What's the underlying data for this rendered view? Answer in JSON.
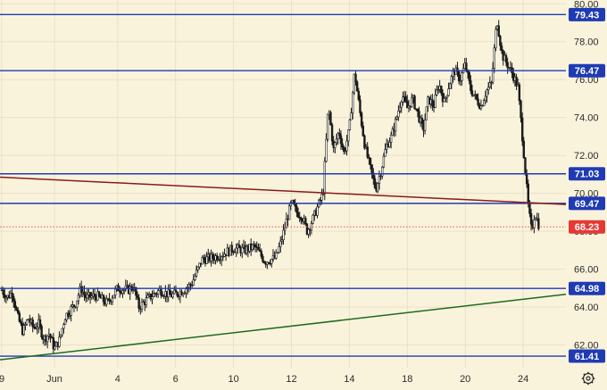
{
  "chart_data": {
    "type": "candlestick",
    "ylim": [
      60.8,
      80.2
    ],
    "y_ticks": [
      62,
      64,
      66,
      68,
      70,
      72,
      74,
      76,
      78,
      80
    ],
    "y_tick_labels": [
      "62.00",
      "64.00",
      "66.00",
      "68.00",
      "70.00",
      "72.00",
      "74.00",
      "76.00",
      "78.00",
      "80.00"
    ],
    "x_range": [
      0,
      50
    ],
    "x_ticks": [
      {
        "x": 0,
        "label": "9"
      },
      {
        "x": 5,
        "label": "Jun"
      },
      {
        "x": 11,
        "label": "4"
      },
      {
        "x": 16.5,
        "label": "6"
      },
      {
        "x": 22,
        "label": "10"
      },
      {
        "x": 27.5,
        "label": "12"
      },
      {
        "x": 33,
        "label": "14"
      },
      {
        "x": 38.5,
        "label": "18"
      },
      {
        "x": 44,
        "label": "20"
      },
      {
        "x": 49.5,
        "label": "24"
      }
    ],
    "close_path": [
      [
        0,
        64.9
      ],
      [
        0.5,
        64.5
      ],
      [
        1,
        64.8
      ],
      [
        1.5,
        63.5
      ],
      [
        2,
        62.7
      ],
      [
        2.5,
        63.4
      ],
      [
        3,
        62.9
      ],
      [
        3.5,
        63.1
      ],
      [
        4,
        62.3
      ],
      [
        4.5,
        62.6
      ],
      [
        5,
        61.8
      ],
      [
        5.5,
        62.3
      ],
      [
        6,
        63.5
      ],
      [
        7,
        64.2
      ],
      [
        7.5,
        65.0
      ],
      [
        8,
        64.5
      ],
      [
        9,
        64.6
      ],
      [
        10,
        64.2
      ],
      [
        11,
        65.0
      ],
      [
        12,
        64.9
      ],
      [
        12.5,
        65.1
      ],
      [
        13,
        64.0
      ],
      [
        14,
        64.5
      ],
      [
        15,
        64.9
      ],
      [
        16,
        64.6
      ],
      [
        17,
        64.8
      ],
      [
        18,
        65.2
      ],
      [
        19,
        66.5
      ],
      [
        20,
        66.6
      ],
      [
        21,
        66.8
      ],
      [
        22,
        67.1
      ],
      [
        23,
        67.0
      ],
      [
        24,
        67.2
      ],
      [
        25,
        66.4
      ],
      [
        26,
        66.6
      ],
      [
        26.5,
        67.4
      ],
      [
        27,
        68.5
      ],
      [
        27.5,
        69.5
      ],
      [
        28,
        69.0
      ],
      [
        28.5,
        68.8
      ],
      [
        29,
        68.0
      ],
      [
        29.5,
        68.6
      ],
      [
        30,
        69.3
      ],
      [
        30.5,
        70.0
      ],
      [
        31,
        74.6
      ],
      [
        31.5,
        72.3
      ],
      [
        32,
        73.3
      ],
      [
        32.5,
        72.1
      ],
      [
        33,
        73.4
      ],
      [
        33.5,
        76.4
      ],
      [
        34,
        74.3
      ],
      [
        34.5,
        72.4
      ],
      [
        35,
        71.3
      ],
      [
        35.5,
        70.2
      ],
      [
        36,
        71.2
      ],
      [
        36.5,
        72.5
      ],
      [
        37,
        73.0
      ],
      [
        37.5,
        74.0
      ],
      [
        38,
        75.2
      ],
      [
        38.5,
        74.5
      ],
      [
        39,
        75.0
      ],
      [
        39.5,
        74.2
      ],
      [
        40,
        73.3
      ],
      [
        40.5,
        75.0
      ],
      [
        41,
        74.6
      ],
      [
        41.5,
        75.8
      ],
      [
        42,
        74.8
      ],
      [
        42.5,
        75.8
      ],
      [
        43,
        76.5
      ],
      [
        43.5,
        76.0
      ],
      [
        44,
        76.8
      ],
      [
        44.5,
        75.5
      ],
      [
        45,
        75.0
      ],
      [
        45.5,
        74.6
      ],
      [
        46,
        75.4
      ],
      [
        46.5,
        75.8
      ],
      [
        47,
        79.2
      ],
      [
        47.5,
        77.3
      ],
      [
        48,
        76.8
      ],
      [
        48.5,
        76.3
      ],
      [
        49,
        75.6
      ],
      [
        49.5,
        72.5
      ],
      [
        50,
        69.2
      ],
      [
        50.3,
        68.0
      ],
      [
        50.6,
        69.0
      ],
      [
        51,
        68.3
      ]
    ],
    "horizontal_levels": [
      {
        "value": 79.43,
        "label": "79.43",
        "color": "#1f3bb3"
      },
      {
        "value": 76.47,
        "label": "76.47",
        "color": "#1f3bb3"
      },
      {
        "value": 71.03,
        "label": "71.03",
        "color": "#1f3bb3"
      },
      {
        "value": 69.47,
        "label": "69.47",
        "color": "#1f3bb3"
      },
      {
        "value": 64.98,
        "label": "64.98",
        "color": "#1f3bb3"
      },
      {
        "value": 61.41,
        "label": "61.41",
        "color": "#1f3bb3"
      }
    ],
    "current_price": {
      "value": 68.23,
      "label": "68.23",
      "color": "#e53935"
    },
    "trendlines": [
      {
        "name": "resistance-trendline",
        "color": "#8b1a1a",
        "from": [
          -2,
          70.9
        ],
        "to": [
          54,
          69.4
        ]
      },
      {
        "name": "support-trendline",
        "color": "#1e6b1e",
        "from": [
          -2,
          61.1
        ],
        "to": [
          54,
          64.7
        ]
      }
    ]
  },
  "colors": {
    "background": "#faf3dc",
    "grid": "#e9e1c6",
    "candles": "#1a1a1a",
    "axis_text": "#2b2b2b"
  },
  "icons": {
    "settings": "gear-icon"
  }
}
